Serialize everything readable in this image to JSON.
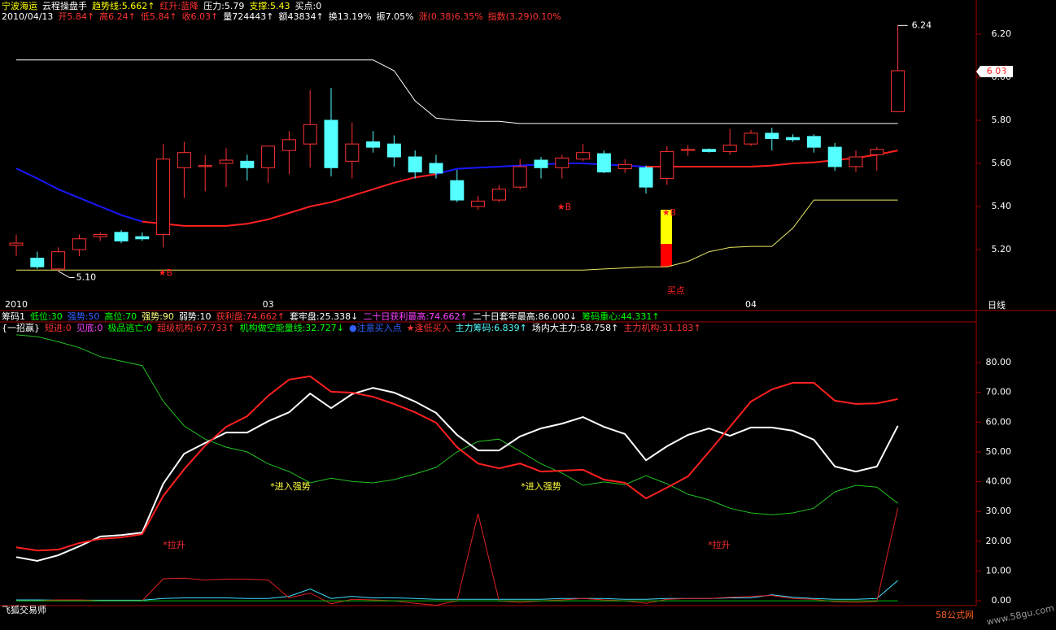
{
  "header": {
    "row1": [
      {
        "text": "宁波海运",
        "color": "#ffff00"
      },
      {
        "text": "云程操盘手",
        "color": "#ffffff"
      },
      {
        "text": "趋势线:5.662↑",
        "color": "#ffff00"
      },
      {
        "text": "红升:蓝降",
        "color": "#ff3232"
      },
      {
        "text": "压力:5.79",
        "color": "#ffffff"
      },
      {
        "text": "支撑:5.43",
        "color": "#ffff00"
      },
      {
        "text": "买点:0",
        "color": "#ffffff"
      }
    ],
    "row2": [
      {
        "text": "2010/04/13",
        "color": "#ffffff"
      },
      {
        "text": "开5.84↑",
        "color": "#ff3232"
      },
      {
        "text": "高6.24↑",
        "color": "#ff3232"
      },
      {
        "text": "低5.84↑",
        "color": "#ff3232"
      },
      {
        "text": "收6.03↑",
        "color": "#ff3232"
      },
      {
        "text": "量724443↑",
        "color": "#ffffff"
      },
      {
        "text": "额43834↑",
        "color": "#ffffff"
      },
      {
        "text": "换13.19%",
        "color": "#ffffff"
      },
      {
        "text": "振7.05%",
        "color": "#ffffff"
      },
      {
        "text": "涨(0.38)6.35%",
        "color": "#ff3232"
      },
      {
        "text": "指数(3.29)0.10%",
        "color": "#ff3232"
      }
    ]
  },
  "indicator": {
    "row1": [
      {
        "text": "筹码1",
        "color": "#ffffff"
      },
      {
        "text": "低位:30",
        "color": "#00ff00"
      },
      {
        "text": "强势:50",
        "color": "#3060ff"
      },
      {
        "text": "高位:70",
        "color": "#00ff00"
      },
      {
        "text": "强势:90",
        "color": "#ffff80"
      },
      {
        "text": "弱势:10",
        "color": "#ffffff"
      },
      {
        "text": "获利盘:74.662↑",
        "color": "#ff3232"
      },
      {
        "text": "套牢盘:25.338↓",
        "color": "#ffffff"
      },
      {
        "text": "二十日获利最高:74.662↑",
        "color": "#ff40ff"
      },
      {
        "text": "二十日套牢最高:86.000↓",
        "color": "#ffffff"
      },
      {
        "text": "筹码重心:44.331↑",
        "color": "#00ff00"
      }
    ],
    "row2": [
      {
        "text": "{一招赢}",
        "color": "#ffffff"
      },
      {
        "text": "短进:0",
        "color": "#ff3232"
      },
      {
        "text": "见底:0",
        "color": "#ff40ff"
      },
      {
        "text": "极品逃亡:0",
        "color": "#00ff00"
      },
      {
        "text": "超级机构:67.733↑",
        "color": "#ff3232"
      },
      {
        "text": "机构做空能量线:32.727↓",
        "color": "#00ff00"
      },
      {
        "text": "●注意买入点",
        "color": "#3060ff"
      },
      {
        "text": "★逢低买入",
        "color": "#ff3232"
      },
      {
        "text": "主力筹码:6.839↑",
        "color": "#54ffff"
      },
      {
        "text": "场内大主力:58.758↑",
        "color": "#ffffff"
      },
      {
        "text": "主力机构:31.183↑",
        "color": "#ff3232"
      }
    ]
  },
  "chart_data": [
    {
      "type": "candlestick",
      "period": "日线",
      "categories": [
        "2010",
        null,
        null,
        null,
        null,
        null,
        null,
        null,
        null,
        null,
        null,
        null,
        "03",
        null,
        null,
        null,
        null,
        null,
        null,
        null,
        null,
        null,
        null,
        null,
        null,
        null,
        null,
        null,
        null,
        null,
        null,
        null,
        null,
        null,
        null,
        "04",
        null,
        null,
        null,
        null,
        null,
        null,
        null
      ],
      "open": [
        5.22,
        5.16,
        5.11,
        5.2,
        5.26,
        5.28,
        5.26,
        5.27,
        5.58,
        5.585,
        5.6,
        5.61,
        5.58,
        5.66,
        5.69,
        5.8,
        5.61,
        5.7,
        5.69,
        5.63,
        5.6,
        5.52,
        5.4,
        5.43,
        5.49,
        5.615,
        5.58,
        5.62,
        5.645,
        5.575,
        5.58,
        5.53,
        5.66,
        5.665,
        5.655,
        5.69,
        5.74,
        5.72,
        5.725,
        5.675,
        5.585,
        5.64,
        5.84
      ],
      "high": [
        5.27,
        5.19,
        5.21,
        5.27,
        5.28,
        5.29,
        5.28,
        5.69,
        5.7,
        5.64,
        5.67,
        5.64,
        5.68,
        5.75,
        5.94,
        5.95,
        5.79,
        5.75,
        5.73,
        5.66,
        5.64,
        5.57,
        5.45,
        5.5,
        5.62,
        5.63,
        5.64,
        5.69,
        5.66,
        5.62,
        5.59,
        5.68,
        5.685,
        5.67,
        5.76,
        5.755,
        5.765,
        5.735,
        5.735,
        5.695,
        5.66,
        5.675,
        6.24
      ],
      "low": [
        5.17,
        5.11,
        5.1,
        5.17,
        5.24,
        5.23,
        5.24,
        5.21,
        5.44,
        5.47,
        5.49,
        5.52,
        5.51,
        5.55,
        5.58,
        5.54,
        5.53,
        5.65,
        5.585,
        5.53,
        5.53,
        5.42,
        5.385,
        5.42,
        5.48,
        5.53,
        5.53,
        5.61,
        5.555,
        5.555,
        5.46,
        5.5,
        5.635,
        5.65,
        5.64,
        5.68,
        5.66,
        5.7,
        5.65,
        5.565,
        5.56,
        5.565,
        5.84
      ],
      "close": [
        5.23,
        5.12,
        5.19,
        5.25,
        5.27,
        5.24,
        5.25,
        5.62,
        5.65,
        5.59,
        5.615,
        5.58,
        5.68,
        5.71,
        5.78,
        5.58,
        5.69,
        5.675,
        5.63,
        5.56,
        5.555,
        5.43,
        5.425,
        5.48,
        5.585,
        5.58,
        5.625,
        5.65,
        5.56,
        5.595,
        5.49,
        5.655,
        5.665,
        5.655,
        5.685,
        5.74,
        5.715,
        5.71,
        5.675,
        5.585,
        5.63,
        5.665,
        6.03
      ],
      "up_color": "#ff3232",
      "down_color": "#54ffff",
      "lines": [
        {
          "color": "#ffffff",
          "values": [
            6.08,
            6.08,
            6.08,
            6.08,
            6.08,
            6.08,
            6.08,
            6.08,
            6.08,
            6.08,
            6.08,
            6.08,
            6.08,
            6.08,
            6.08,
            6.08,
            6.08,
            6.08,
            6.03,
            5.89,
            5.81,
            5.8,
            5.795,
            5.795,
            5.785,
            5.785,
            5.785,
            5.785,
            5.785,
            5.785,
            5.785,
            5.785,
            5.785,
            5.785,
            5.785,
            5.785,
            5.785,
            5.785,
            5.785,
            5.785,
            5.785,
            5.785,
            5.785
          ]
        },
        {
          "color": "#e8e860",
          "values": [
            5.105,
            5.105,
            5.105,
            5.105,
            5.105,
            5.105,
            5.105,
            5.105,
            5.105,
            5.105,
            5.105,
            5.105,
            5.105,
            5.105,
            5.105,
            5.105,
            5.105,
            5.105,
            5.105,
            5.105,
            5.105,
            5.105,
            5.105,
            5.105,
            5.105,
            5.105,
            5.105,
            5.105,
            5.11,
            5.115,
            5.12,
            5.12,
            5.145,
            5.19,
            5.21,
            5.215,
            5.215,
            5.3,
            5.43,
            5.43,
            5.43,
            5.43,
            5.43
          ]
        },
        {
          "color": "#1818ff",
          "values": [
            5.577,
            5.53,
            5.48,
            5.44,
            5.4,
            5.36,
            5.33,
            null,
            null,
            null,
            null,
            null,
            null,
            null,
            null,
            null,
            null,
            null,
            null,
            null,
            5.55,
            5.575,
            5.58,
            5.585,
            5.59,
            5.595,
            5.6,
            5.6,
            5.595,
            5.59,
            5.585,
            null,
            null,
            null,
            null,
            null,
            null,
            null,
            null,
            null,
            null,
            null,
            null
          ]
        },
        {
          "color": "#ff2020",
          "values": [
            null,
            null,
            null,
            null,
            null,
            null,
            5.33,
            5.32,
            5.31,
            5.31,
            5.31,
            5.32,
            5.34,
            5.37,
            5.4,
            5.42,
            5.45,
            5.48,
            5.51,
            5.535,
            5.55,
            null,
            null,
            null,
            null,
            null,
            null,
            null,
            null,
            null,
            5.585,
            5.585,
            5.585,
            5.585,
            5.585,
            5.585,
            5.59,
            5.6,
            5.605,
            5.615,
            5.625,
            5.64,
            5.66
          ]
        }
      ],
      "ylim": [
        4.97,
        6.245
      ],
      "yticks": [
        {
          "value": 5.2,
          "label": "5.20"
        },
        {
          "value": 5.4,
          "label": "5.40"
        },
        {
          "value": 5.6,
          "label": "5.60"
        },
        {
          "value": 5.8,
          "label": "5.80"
        },
        {
          "value": 6.0,
          "label": "6.00"
        },
        {
          "value": 6.2,
          "label": "6.20"
        }
      ],
      "last_label": "6.03",
      "low_label": "5.10",
      "high_label": "6.24",
      "buy_label": "买点",
      "signals": [
        "★B",
        "★B",
        "★B"
      ]
    },
    {
      "type": "line",
      "series": [
        {
          "color": "#20c020",
          "values": [
            89.3,
            88.7,
            87,
            85,
            82,
            80.5,
            79,
            67,
            58.7,
            54.3,
            51.6,
            50,
            46,
            43.4,
            39.6,
            41.2,
            40.1,
            39.6,
            40.7,
            42.6,
            44.8,
            50,
            53.5,
            54.3,
            50.2,
            46,
            42.9,
            38.8,
            39.9,
            39,
            42,
            39.3,
            35.8,
            33.9,
            31.1,
            29.5,
            28.9,
            29.5,
            31.1,
            36.6,
            38.8,
            38.2,
            32.727
          ]
        },
        {
          "color": "#ffffff",
          "values": [
            14.7,
            13.4,
            15.3,
            18.3,
            21.6,
            22.1,
            22.9,
            39.3,
            49.4,
            53,
            56.5,
            56.5,
            60.3,
            63.3,
            69.6,
            64.7,
            69.4,
            71.5,
            69.9,
            66.9,
            63.1,
            55.7,
            50.5,
            50.5,
            55.2,
            57.9,
            59.5,
            61.7,
            58.4,
            56,
            47.2,
            51.9,
            55.7,
            57.9,
            55.4,
            58.2,
            58.2,
            57.1,
            54.1,
            45.1,
            43.4,
            45.1,
            58.758
          ]
        },
        {
          "color": "#ff2020",
          "values": [
            18,
            16.9,
            17.2,
            19.4,
            20.8,
            21.3,
            22.4,
            35.2,
            44.2,
            52.1,
            58.4,
            62,
            68.8,
            74.3,
            75.4,
            70.2,
            69.9,
            68.5,
            66.1,
            63.3,
            59.8,
            51.6,
            46.1,
            44.5,
            46.1,
            43.4,
            43.7,
            44,
            40.7,
            39.6,
            34.4,
            38,
            41.8,
            50,
            58.4,
            66.9,
            71,
            73.2,
            73.2,
            67.2,
            66.1,
            66.3,
            67.733
          ]
        },
        {
          "color": "#40e0ff",
          "values": [
            0.3,
            0.3,
            0.2,
            0.2,
            0.2,
            0.2,
            0.2,
            0.8,
            1.0,
            1.0,
            1.0,
            0.8,
            0.8,
            1.5,
            4.0,
            0.8,
            1.5,
            1.0,
            1.0,
            0.8,
            0.5,
            0.5,
            0.5,
            0.5,
            0.5,
            0.5,
            0.8,
            0.8,
            0.8,
            0.5,
            0.5,
            0.8,
            0.8,
            0.8,
            1.0,
            1.0,
            2.0,
            1.2,
            0.8,
            0.5,
            0.5,
            0.8,
            6.839
          ]
        },
        {
          "color": "#e02020",
          "values": [
            0,
            0,
            0.3,
            0.3,
            0,
            0,
            0,
            7.4,
            7.6,
            7.0,
            7.3,
            7.3,
            7.0,
            1.0,
            2.6,
            -1.0,
            0.5,
            0.3,
            0,
            -0.8,
            -1.5,
            0,
            29.2,
            0,
            -0.5,
            0,
            0.3,
            0.8,
            0.3,
            0,
            -0.8,
            0.5,
            0.8,
            0.8,
            1.2,
            1.5,
            1.8,
            0.8,
            0.5,
            -0.3,
            -0.5,
            -0.2,
            31.183
          ]
        },
        {
          "color": "#00c000",
          "values": [
            0,
            0,
            0,
            0,
            0,
            0,
            0,
            0,
            0,
            0,
            0,
            0,
            0,
            0,
            0,
            0,
            0,
            0,
            0,
            0,
            0,
            0,
            0,
            0,
            0,
            0,
            0,
            0,
            0,
            0,
            0,
            0,
            0,
            0,
            0,
            0,
            0,
            0,
            0,
            0,
            0,
            0,
            0
          ]
        }
      ],
      "ylim": [
        -1.6,
        93.1
      ],
      "yticks": [
        {
          "value": 0,
          "label": "0.00"
        },
        {
          "value": 10,
          "label": "10.00"
        },
        {
          "value": 20,
          "label": "20.00"
        },
        {
          "value": 30,
          "label": "30.00"
        },
        {
          "value": 40,
          "label": "40.00"
        },
        {
          "value": 50,
          "label": "50.00"
        },
        {
          "value": 60,
          "label": "60.00"
        },
        {
          "value": 70,
          "label": "70.00"
        },
        {
          "value": 80,
          "label": "80.00"
        }
      ],
      "annotations": [
        {
          "text": "*进入强势",
          "color": "#ffff40"
        },
        {
          "text": "*进入强势",
          "color": "#ffff40"
        },
        {
          "text": "*拉升",
          "color": "#ff3030"
        },
        {
          "text": "*拉升",
          "color": "#ff3030"
        }
      ]
    }
  ],
  "footer": {
    "app": "飞狐交易师",
    "watermark": "58公式网",
    "url": "www.58gu.com"
  }
}
